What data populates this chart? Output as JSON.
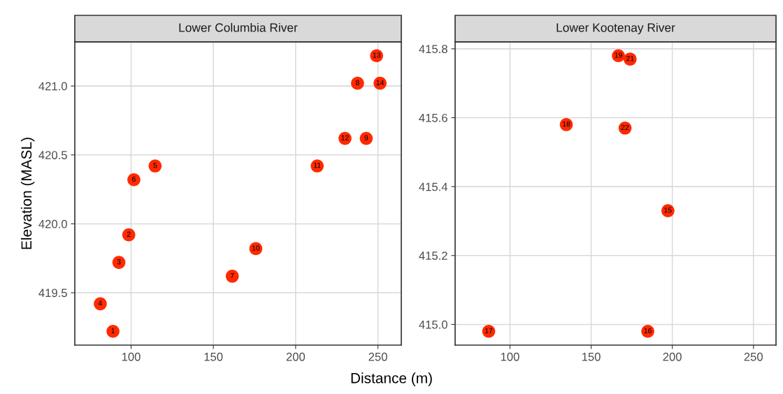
{
  "chart_data": [
    {
      "type": "scatter",
      "title": "Lower Columbia River",
      "xlabel": "Distance (m)",
      "ylabel": "Elevation (MASL)",
      "color": "#ff2a00",
      "marker": "circle",
      "grid": true,
      "legend": false,
      "x": [
        89.0,
        98.6,
        92.6,
        81.3,
        114.6,
        101.7,
        161.5,
        237.6,
        242.9,
        175.8,
        213.1,
        230.0,
        249.2,
        251.3
      ],
      "values": [
        419.22,
        419.92,
        419.72,
        419.42,
        420.42,
        420.32,
        419.62,
        421.02,
        420.62,
        419.82,
        420.42,
        420.62,
        421.22,
        421.02
      ],
      "xlim": [
        65.8,
        264.2
      ],
      "xticks": [
        100,
        150,
        200,
        250
      ],
      "ylim": [
        419.12,
        421.32
      ],
      "yticks": [
        419.5,
        {
          "value": 420,
          "label": "420.0"
        },
        420.5,
        {
          "value": 421,
          "label": "421.0"
        }
      ],
      "annotations": [
        {
          "text": "1",
          "x": 89.0,
          "y": 419.22
        },
        {
          "text": "2",
          "x": 98.6,
          "y": 419.92
        },
        {
          "text": "3",
          "x": 92.6,
          "y": 419.72
        },
        {
          "text": "4",
          "x": 81.3,
          "y": 419.42
        },
        {
          "text": "5",
          "x": 114.6,
          "y": 420.42
        },
        {
          "text": "6",
          "x": 101.7,
          "y": 420.32
        },
        {
          "text": "7",
          "x": 161.5,
          "y": 419.62
        },
        {
          "text": "8",
          "x": 237.6,
          "y": 421.02
        },
        {
          "text": "9",
          "x": 242.9,
          "y": 420.62
        },
        {
          "text": "10",
          "x": 175.8,
          "y": 419.82
        },
        {
          "text": "11",
          "x": 213.1,
          "y": 420.42
        },
        {
          "text": "12",
          "x": 230.0,
          "y": 420.62
        },
        {
          "text": "13",
          "x": 249.2,
          "y": 421.22
        },
        {
          "text": "14",
          "x": 251.3,
          "y": 421.02
        }
      ]
    },
    {
      "type": "scatter",
      "title": "Lower Kootenay River",
      "color": "#ff2a00",
      "marker": "circle",
      "grid": true,
      "legend": false,
      "x": [
        197.3,
        184.9,
        86.9,
        134.7,
        166.8,
        174.0,
        170.9
      ],
      "values": [
        415.33,
        414.98,
        414.98,
        415.58,
        415.78,
        415.77,
        415.57
      ],
      "xlim": [
        66.2,
        263.9
      ],
      "xticks": [
        100,
        150,
        200,
        250
      ],
      "ylim": [
        414.94,
        415.82
      ],
      "yticks": [
        {
          "value": 415,
          "label": "415.0"
        },
        415.2,
        415.4,
        415.6,
        415.8
      ],
      "annotations": [
        {
          "text": "15",
          "x": 197.3,
          "y": 415.33
        },
        {
          "text": "16",
          "x": 184.9,
          "y": 414.98
        },
        {
          "text": "17",
          "x": 86.9,
          "y": 414.98
        },
        {
          "text": "18",
          "x": 134.7,
          "y": 415.58
        },
        {
          "text": "19",
          "x": 166.8,
          "y": 415.78
        },
        {
          "text": "21",
          "x": 174.0,
          "y": 415.77
        },
        {
          "text": "22",
          "x": 170.9,
          "y": 415.57
        }
      ]
    }
  ]
}
